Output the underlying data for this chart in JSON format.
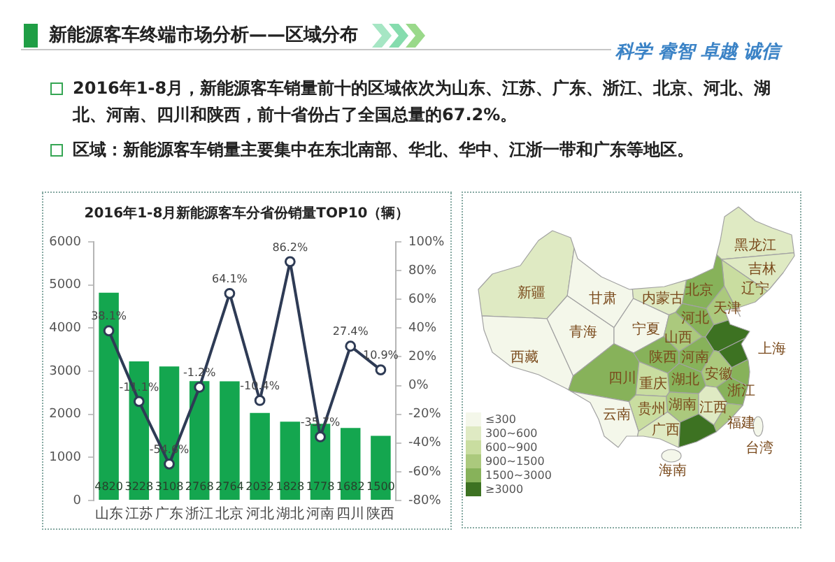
{
  "chart_data": [
    {
      "type": "bar",
      "title": "2016年1-8月新能源客车分省份销量TOP10（辆）",
      "annotations": [
        "新能源客车终端市场分析——区域分布",
        "科学 睿智 卓越 诚信",
        "2016年1-8月，新能源客车销量前十的区域依次为山东、江苏、广东、浙江、北京、河北、湖北、河南、四川和陕西，前十省份占了全国总量的67.2%。",
        "区域：新能源客车销量主要集中在东北南部、华北、华中、江浙一带和广东等地区。"
      ],
      "categories": [
        "山东",
        "江苏",
        "广东",
        "浙江",
        "北京",
        "河北",
        "湖北",
        "河南",
        "四川",
        "陕西"
      ],
      "series": [
        {
          "type": "bar",
          "color": "#14a64f",
          "values": [
            4820,
            3228,
            3108,
            2768,
            2764,
            2032,
            1828,
            1778,
            1682,
            1500
          ],
          "value_labels": [
            "4820",
            "3228",
            "3108",
            "2768",
            "2764",
            "2032",
            "1828",
            "1778",
            "1682",
            "1500"
          ]
        },
        {
          "type": "line",
          "axis": "y2",
          "color": "#2e3b55",
          "values": [
            38.1,
            -11.1,
            -54.6,
            -1.2,
            64.1,
            -10.4,
            86.2,
            -35.7,
            27.4,
            10.9
          ],
          "value_labels": [
            "38.1%",
            "-11.1%",
            "-54.6%",
            "-1.2%",
            "64.1%",
            "-10.4%",
            "86.2%",
            "-35.7%",
            "27.4%",
            "10.9%"
          ]
        }
      ],
      "ylim": [
        0,
        6000
      ],
      "yticks": [
        0,
        1000,
        2000,
        3000,
        4000,
        5000,
        6000
      ],
      "y2lim": [
        -80,
        100
      ],
      "y2ticks": [
        {
          "value": -80,
          "label": "-80%"
        },
        {
          "value": -60,
          "label": "-60%"
        },
        {
          "value": -40,
          "label": "-40%"
        },
        {
          "value": -20,
          "label": "-20%"
        },
        {
          "value": 0,
          "label": "0%"
        },
        {
          "value": 20,
          "label": "20%"
        },
        {
          "value": 40,
          "label": "40%"
        },
        {
          "value": 60,
          "label": "60%"
        },
        {
          "value": 80,
          "label": "80%"
        },
        {
          "value": 100,
          "label": "100%"
        }
      ],
      "marker": "circle",
      "grid": false,
      "legend": false
    },
    {
      "type": "other",
      "categories": [
        "新疆",
        "西藏",
        "青海",
        "甘肃",
        "内蒙古",
        "黑龙江",
        "吉林",
        "辽宁",
        "北京",
        "天津",
        "河北",
        "宁夏",
        "山西",
        null,
        "陕西",
        "河南",
        null,
        "安徽",
        "上海",
        "四川",
        "重庆",
        "湖北",
        "浙江",
        "贵州",
        "湖南",
        "江西",
        "云南",
        "福建",
        "广西",
        null,
        "台湾",
        "海南"
      ],
      "colors": [
        "#dfeac3",
        "#f4f7ea",
        "#f4f7ea",
        "#f4f7ea",
        "#dfeac3",
        "#dfeac3",
        "#dfeac3",
        "#c9dda0",
        "#87b25a",
        "#abc97d",
        "#87b25a",
        "#f4f7ea",
        "#abc97d",
        "#3d7222",
        "#87b25a",
        "#87b25a",
        "#3d7222",
        "#abc97d",
        "#87b25a",
        "#87b25a",
        "#c9dda0",
        "#87b25a",
        "#87b25a",
        "#c9dda0",
        "#abc97d",
        "#dfeac3",
        "#f4f7ea",
        "#abc97d",
        "#dfeac3",
        "#3d7222",
        "#f4f7ea",
        "#f4f7ea"
      ],
      "series": [
        {
          "name": "≤300",
          "color": "#f4f7ea",
          "values": [
            null,
            null,
            null,
            null,
            null,
            null,
            null,
            null,
            null,
            null,
            null,
            null,
            null,
            null,
            null,
            null,
            null,
            null,
            null,
            null,
            null,
            null,
            null,
            null,
            null,
            null,
            null,
            null,
            null,
            null,
            null,
            null
          ]
        },
        {
          "name": "300~600",
          "color": "#dfeac3",
          "values": [
            null,
            null,
            null,
            null,
            null,
            null,
            null,
            null,
            null,
            null,
            null,
            null,
            null,
            null,
            null,
            null,
            null,
            null,
            null,
            null,
            null,
            null,
            null,
            null,
            null,
            null,
            null,
            null,
            null,
            null,
            null,
            null
          ]
        },
        {
          "name": "600~900",
          "color": "#c9dda0",
          "values": [
            null,
            null,
            null,
            null,
            null,
            null,
            null,
            null,
            null,
            null,
            null,
            null,
            null,
            null,
            null,
            null,
            null,
            null,
            null,
            null,
            null,
            null,
            null,
            null,
            null,
            null,
            null,
            null,
            null,
            null,
            null,
            null
          ]
        },
        {
          "name": "900~1500",
          "color": "#abc97d",
          "values": [
            null,
            null,
            null,
            null,
            null,
            null,
            null,
            null,
            null,
            null,
            null,
            null,
            null,
            null,
            null,
            null,
            null,
            null,
            null,
            null,
            null,
            null,
            null,
            null,
            null,
            null,
            null,
            null,
            null,
            null,
            null,
            null
          ]
        },
        {
          "name": "1500~3000",
          "color": "#87b25a",
          "values": [
            null,
            null,
            null,
            null,
            null,
            null,
            null,
            null,
            null,
            null,
            null,
            null,
            null,
            null,
            null,
            null,
            null,
            null,
            null,
            null,
            null,
            null,
            null,
            null,
            null,
            null,
            null,
            null,
            null,
            null,
            null,
            null
          ]
        },
        {
          "name": "≥3000",
          "color": "#3d7222",
          "values": [
            null,
            null,
            null,
            null,
            null,
            null,
            null,
            null,
            null,
            null,
            null,
            null,
            null,
            null,
            null,
            null,
            null,
            null,
            null,
            null,
            null,
            null,
            null,
            null,
            null,
            null,
            null,
            null,
            null,
            null,
            null,
            null
          ]
        }
      ],
      "legend": "bottom left"
    }
  ]
}
